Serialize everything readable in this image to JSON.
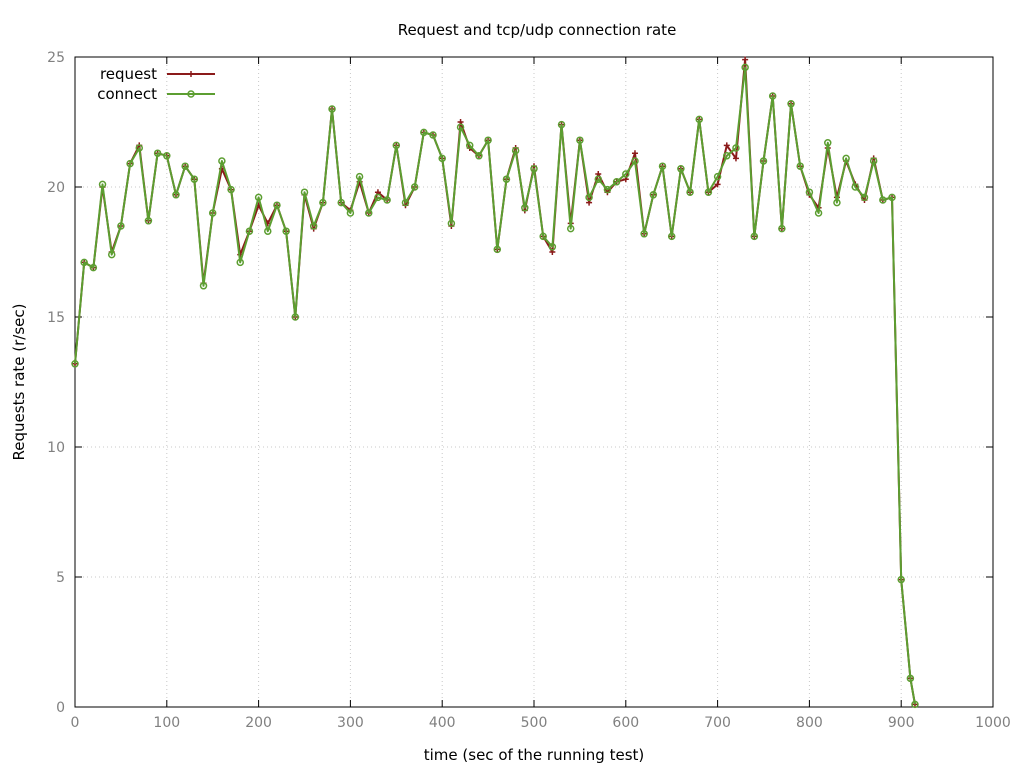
{
  "chart_data": {
    "type": "line",
    "title": "Request and tcp/udp connection rate",
    "xlabel": "time (sec of the running test)",
    "ylabel": "Requests rate (r/sec)",
    "xlim": [
      0,
      1000
    ],
    "ylim": [
      0,
      25
    ],
    "xticks": [
      0,
      100,
      200,
      300,
      400,
      500,
      600,
      700,
      800,
      900,
      1000
    ],
    "yticks": [
      0,
      5,
      10,
      15,
      20,
      25
    ],
    "grid": true,
    "legend_position": "top-left",
    "series": [
      {
        "name": "request",
        "color": "#8b1a1a",
        "marker": "plus",
        "x": [
          0,
          10,
          20,
          30,
          40,
          50,
          60,
          70,
          80,
          90,
          100,
          110,
          120,
          130,
          140,
          150,
          160,
          170,
          180,
          190,
          200,
          210,
          220,
          230,
          240,
          250,
          260,
          270,
          280,
          290,
          300,
          310,
          320,
          330,
          340,
          350,
          360,
          370,
          380,
          390,
          400,
          410,
          420,
          430,
          440,
          450,
          460,
          470,
          480,
          490,
          500,
          510,
          520,
          530,
          540,
          550,
          560,
          570,
          580,
          590,
          600,
          610,
          620,
          630,
          640,
          650,
          660,
          670,
          680,
          690,
          700,
          710,
          720,
          730,
          740,
          750,
          760,
          770,
          780,
          790,
          800,
          810,
          820,
          830,
          840,
          850,
          860,
          870,
          880,
          890,
          900,
          910,
          915
        ],
        "y": [
          13.2,
          17.1,
          16.9,
          20.0,
          17.5,
          18.5,
          20.9,
          21.6,
          18.7,
          21.3,
          21.2,
          19.7,
          20.8,
          20.3,
          16.3,
          19.0,
          20.7,
          19.9,
          17.4,
          18.3,
          19.3,
          18.6,
          19.3,
          18.3,
          15.0,
          19.7,
          18.4,
          19.4,
          23.0,
          19.4,
          19.1,
          20.2,
          19.0,
          19.8,
          19.5,
          21.6,
          19.3,
          20.0,
          22.1,
          22.0,
          21.1,
          18.5,
          22.5,
          21.5,
          21.2,
          21.8,
          17.6,
          20.3,
          21.5,
          19.1,
          20.8,
          18.1,
          17.5,
          22.4,
          18.6,
          21.8,
          19.4,
          20.5,
          19.8,
          20.2,
          20.3,
          21.3,
          18.2,
          19.7,
          20.8,
          18.1,
          20.7,
          19.8,
          22.6,
          19.8,
          20.1,
          21.6,
          21.1,
          24.9,
          18.1,
          21.0,
          23.5,
          18.4,
          23.2,
          20.8,
          19.7,
          19.2,
          21.5,
          19.6,
          21.0,
          20.1,
          19.5,
          21.1,
          19.5,
          19.6,
          4.9,
          1.1,
          0.1
        ]
      },
      {
        "name": "connect",
        "color": "#5c9e31",
        "marker": "circle",
        "x": [
          0,
          10,
          20,
          30,
          40,
          50,
          60,
          70,
          80,
          90,
          100,
          110,
          120,
          130,
          140,
          150,
          160,
          170,
          180,
          190,
          200,
          210,
          220,
          230,
          240,
          250,
          260,
          270,
          280,
          290,
          300,
          310,
          320,
          330,
          340,
          350,
          360,
          370,
          380,
          390,
          400,
          410,
          420,
          430,
          440,
          450,
          460,
          470,
          480,
          490,
          500,
          510,
          520,
          530,
          540,
          550,
          560,
          570,
          580,
          590,
          600,
          610,
          620,
          630,
          640,
          650,
          660,
          670,
          680,
          690,
          700,
          710,
          720,
          730,
          740,
          750,
          760,
          770,
          780,
          790,
          800,
          810,
          820,
          830,
          840,
          850,
          860,
          870,
          880,
          890,
          900,
          910,
          915
        ],
        "y": [
          13.2,
          17.1,
          16.9,
          20.1,
          17.4,
          18.5,
          20.9,
          21.5,
          18.7,
          21.3,
          21.2,
          19.7,
          20.8,
          20.3,
          16.2,
          19.0,
          21.0,
          19.9,
          17.1,
          18.3,
          19.6,
          18.3,
          19.3,
          18.3,
          15.0,
          19.8,
          18.5,
          19.4,
          23.0,
          19.4,
          19.0,
          20.4,
          19.0,
          19.6,
          19.5,
          21.6,
          19.4,
          20.0,
          22.1,
          22.0,
          21.1,
          18.6,
          22.3,
          21.6,
          21.2,
          21.8,
          17.6,
          20.3,
          21.4,
          19.2,
          20.7,
          18.1,
          17.7,
          22.4,
          18.4,
          21.8,
          19.6,
          20.3,
          19.9,
          20.2,
          20.5,
          21.0,
          18.2,
          19.7,
          20.8,
          18.1,
          20.7,
          19.8,
          22.6,
          19.8,
          20.4,
          21.2,
          21.5,
          24.6,
          18.1,
          21.0,
          23.5,
          18.4,
          23.2,
          20.8,
          19.8,
          19.0,
          21.7,
          19.4,
          21.1,
          20.0,
          19.6,
          21.0,
          19.5,
          19.6,
          4.9,
          1.1,
          0.1
        ]
      }
    ]
  }
}
